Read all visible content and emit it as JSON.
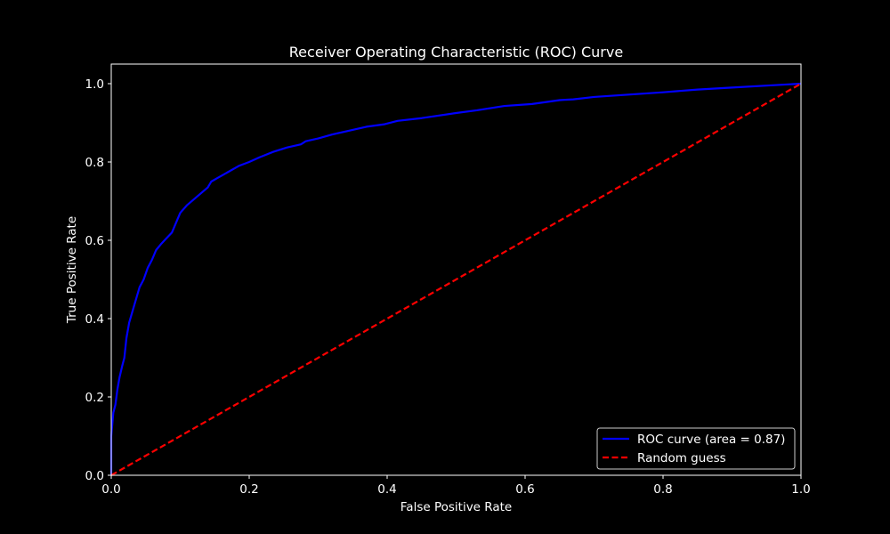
{
  "colors": {
    "background": "#000000",
    "foreground": "#ffffff",
    "roc": "#0000ff",
    "random": "#ff0000"
  },
  "chart_data": {
    "type": "line",
    "title": "Receiver Operating Characteristic (ROC) Curve",
    "xlabel": "False Positive Rate",
    "ylabel": "True Positive Rate",
    "xlim": [
      0.0,
      1.0
    ],
    "ylim": [
      0.0,
      1.05
    ],
    "xticks": [
      "0.0",
      "0.2",
      "0.4",
      "0.6",
      "0.8",
      "1.0"
    ],
    "yticks": [
      "0.0",
      "0.2",
      "0.4",
      "0.6",
      "0.8",
      "1.0"
    ],
    "grid": false,
    "legend_position": "lower-right",
    "series": [
      {
        "name": "ROC curve (area = 0.87)",
        "color": "#0000ff",
        "style": "solid",
        "x": [
          0.0,
          0.0,
          0.003,
          0.006,
          0.009,
          0.012,
          0.016,
          0.019,
          0.022,
          0.026,
          0.031,
          0.036,
          0.041,
          0.047,
          0.053,
          0.059,
          0.065,
          0.072,
          0.08,
          0.088,
          0.094,
          0.1,
          0.11,
          0.12,
          0.13,
          0.14,
          0.145,
          0.155,
          0.17,
          0.185,
          0.2,
          0.215,
          0.235,
          0.255,
          0.275,
          0.282,
          0.3,
          0.32,
          0.345,
          0.37,
          0.395,
          0.415,
          0.45,
          0.5,
          0.53,
          0.57,
          0.61,
          0.65,
          0.67,
          0.7,
          0.75,
          0.8,
          0.85,
          0.9,
          0.95,
          1.0
        ],
        "y": [
          0.0,
          0.1,
          0.16,
          0.18,
          0.22,
          0.25,
          0.28,
          0.3,
          0.35,
          0.39,
          0.42,
          0.45,
          0.48,
          0.5,
          0.53,
          0.55,
          0.575,
          0.59,
          0.605,
          0.62,
          0.645,
          0.67,
          0.69,
          0.705,
          0.72,
          0.735,
          0.75,
          0.76,
          0.775,
          0.79,
          0.8,
          0.812,
          0.826,
          0.837,
          0.845,
          0.853,
          0.86,
          0.87,
          0.88,
          0.89,
          0.896,
          0.905,
          0.912,
          0.925,
          0.932,
          0.943,
          0.948,
          0.958,
          0.96,
          0.966,
          0.972,
          0.978,
          0.985,
          0.99,
          0.995,
          1.0
        ]
      },
      {
        "name": "Random guess",
        "color": "#ff0000",
        "style": "dashed",
        "x": [
          0.0,
          1.0
        ],
        "y": [
          0.0,
          1.0
        ]
      }
    ]
  }
}
